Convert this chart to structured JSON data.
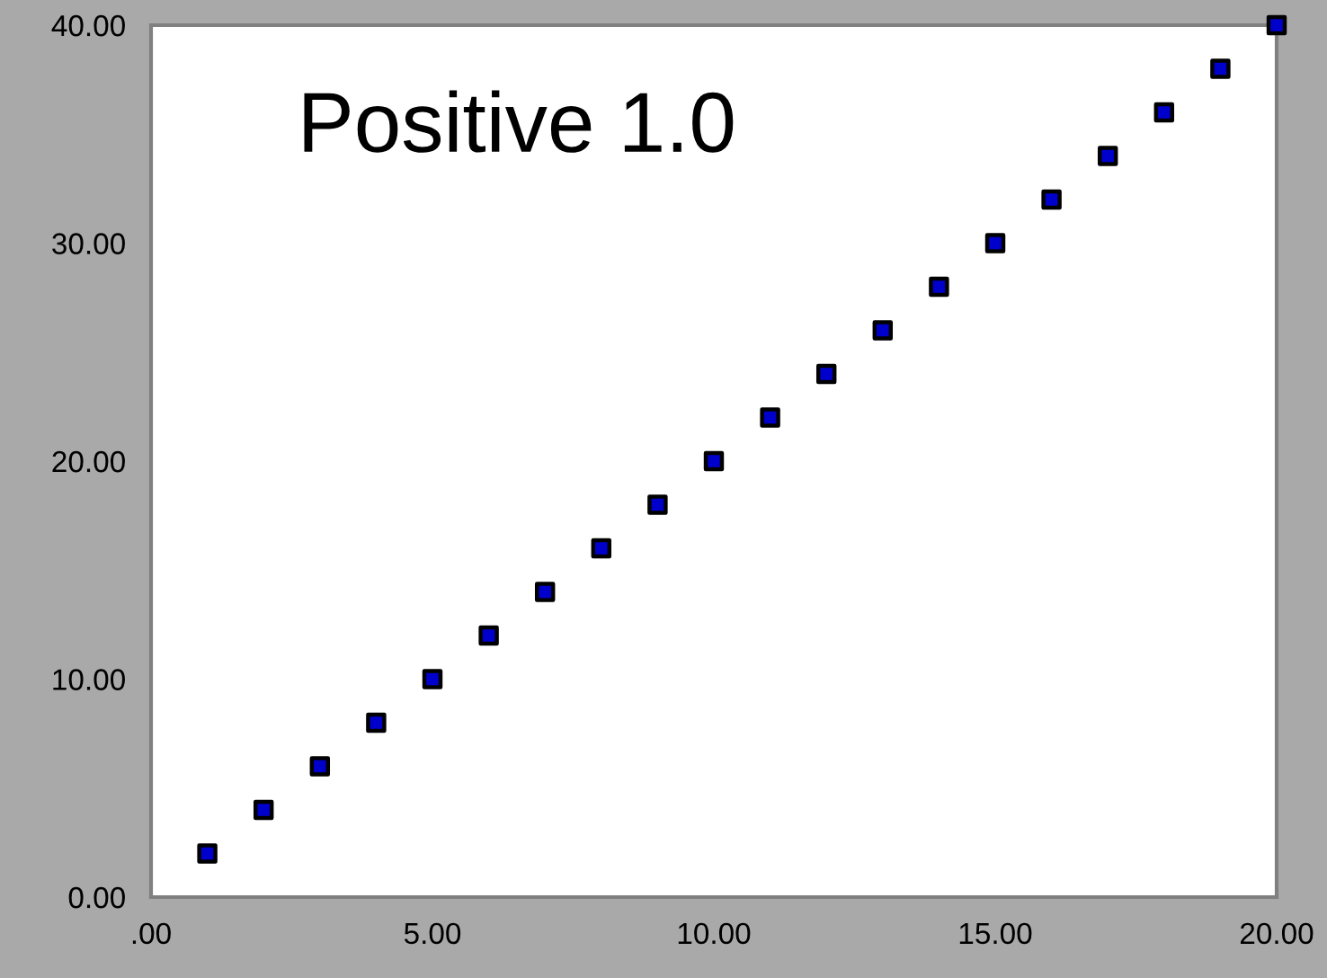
{
  "chart_data": {
    "type": "scatter",
    "x": [
      1,
      2,
      3,
      4,
      5,
      6,
      7,
      8,
      9,
      10,
      11,
      12,
      13,
      14,
      15,
      16,
      17,
      18,
      19,
      20
    ],
    "series": [
      {
        "color": "#0000cc",
        "values": [
          2,
          4,
          6,
          8,
          10,
          12,
          14,
          16,
          18,
          20,
          22,
          24,
          26,
          28,
          30,
          32,
          34,
          36,
          38,
          40
        ]
      }
    ],
    "xlim": [
      0,
      20
    ],
    "ylim": [
      0,
      40
    ],
    "xticks": [
      {
        "value": 0,
        "label": ".00"
      },
      {
        "value": 5,
        "label": "5.00"
      },
      {
        "value": 10,
        "label": "10.00"
      },
      {
        "value": 15,
        "label": "15.00"
      },
      {
        "value": 20,
        "label": "20.00"
      }
    ],
    "yticks": [
      {
        "value": 0,
        "label": "0.00"
      },
      {
        "value": 10,
        "label": "10.00"
      },
      {
        "value": 20,
        "label": "20.00"
      },
      {
        "value": 30,
        "label": "30.00"
      },
      {
        "value": 40,
        "label": "40.00"
      }
    ],
    "marker": "square",
    "grid": false,
    "legend": false,
    "annotations": [
      "Positive 1.0"
    ]
  }
}
